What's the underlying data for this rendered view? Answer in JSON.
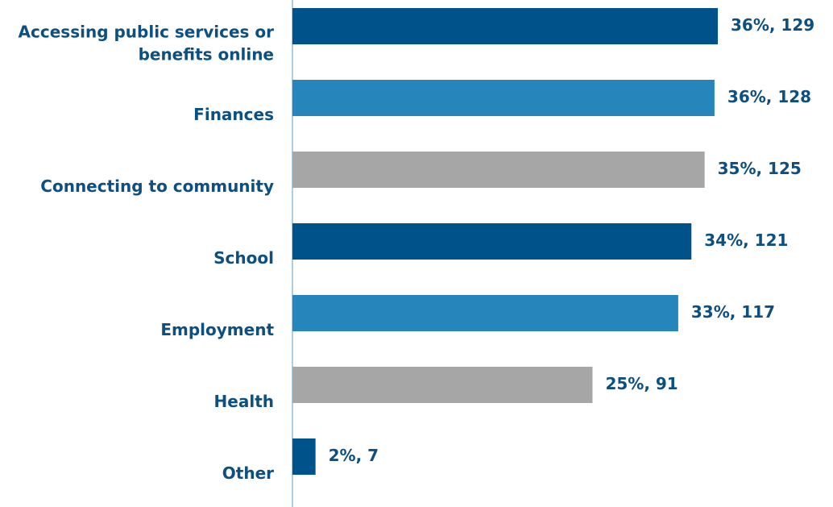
{
  "chart_data": {
    "type": "hbar",
    "categories": [
      "Accessing public services or benefits online",
      "Finances",
      "Connecting to community",
      "School",
      "Employment",
      "Health",
      "Other"
    ],
    "values": [
      129,
      128,
      125,
      121,
      117,
      91,
      7
    ],
    "value_labels": [
      "36%, 129",
      "36%, 128",
      "35%, 125",
      "34%, 121",
      "33%, 117",
      "25%, 91",
      "2%, 7"
    ],
    "colors": [
      "#00538a",
      "#2685ba",
      "#a6a6a6",
      "#00538a",
      "#2685ba",
      "#a6a6a6",
      "#00538a"
    ]
  }
}
